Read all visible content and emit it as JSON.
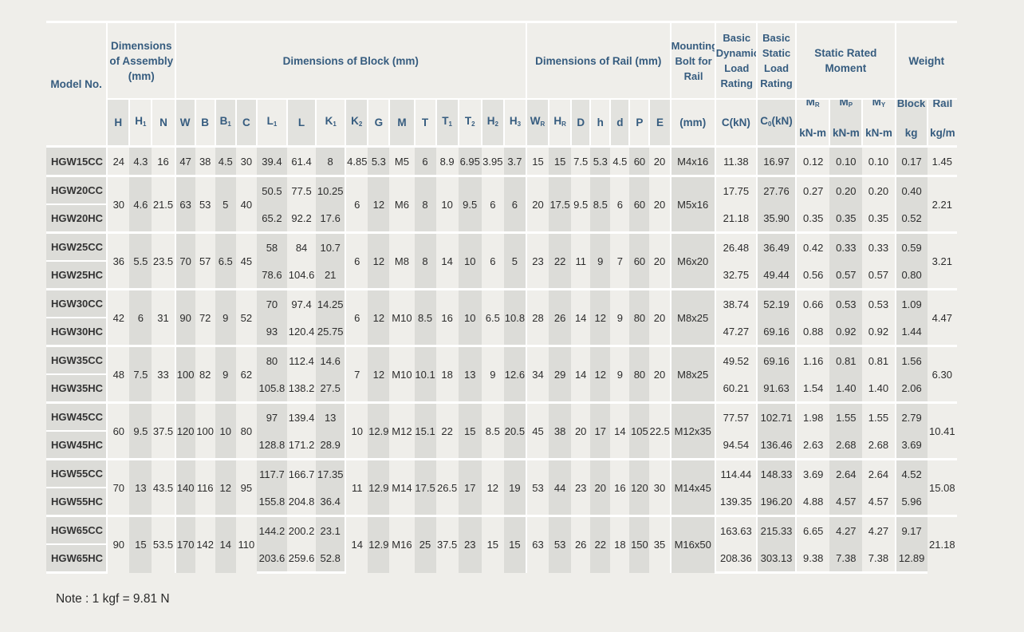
{
  "headers": {
    "model_no": "Model No.",
    "assembly_group": "Dimensions of Assembly (mm)",
    "block_group": "Dimensions of Block (mm)",
    "rail_group": "Dimensions of Rail (mm)",
    "mounting_bolt": "Mounting Bolt for Rail",
    "basic_dynamic": "Basic Dynamic Load Rating",
    "basic_static": "Basic Static Load Rating",
    "static_moment": "Static Rated Moment",
    "weight": "Weight",
    "block": "Block",
    "rail": "Rail",
    "mounting_unit": "(mm)",
    "dynamic_unit": "C(kN)",
    "static_unit_base": "C",
    "static_unit_sub": "0",
    "static_unit_tail": "(kN)",
    "moment_unit": "kN-m",
    "block_unit": "kg",
    "rail_unit": "kg/m",
    "moment_cols": [
      {
        "base": "M",
        "sub": "R"
      },
      {
        "base": "M",
        "sub": "P"
      },
      {
        "base": "M",
        "sub": "Y"
      }
    ],
    "dims": [
      {
        "base": "H",
        "sub": ""
      },
      {
        "base": "H",
        "sub": "1"
      },
      {
        "base": "N",
        "sub": ""
      },
      {
        "base": "W",
        "sub": ""
      },
      {
        "base": "B",
        "sub": ""
      },
      {
        "base": "B",
        "sub": "1"
      },
      {
        "base": "C",
        "sub": ""
      },
      {
        "base": "L",
        "sub": "1"
      },
      {
        "base": "L",
        "sub": ""
      },
      {
        "base": "K",
        "sub": "1"
      },
      {
        "base": "K",
        "sub": "2"
      },
      {
        "base": "G",
        "sub": ""
      },
      {
        "base": "M",
        "sub": ""
      },
      {
        "base": "T",
        "sub": ""
      },
      {
        "base": "T",
        "sub": "1"
      },
      {
        "base": "T",
        "sub": "2"
      },
      {
        "base": "H",
        "sub": "2"
      },
      {
        "base": "H",
        "sub": "3"
      },
      {
        "base": "W",
        "sub": "R"
      },
      {
        "base": "H",
        "sub": "R"
      },
      {
        "base": "D",
        "sub": ""
      },
      {
        "base": "h",
        "sub": ""
      },
      {
        "base": "d",
        "sub": ""
      },
      {
        "base": "P",
        "sub": ""
      },
      {
        "base": "E",
        "sub": ""
      }
    ]
  },
  "groups": [
    {
      "shared": {
        "H": "24",
        "H1": "4.3",
        "N": "16",
        "W": "47",
        "B": "38",
        "B1": "4.5",
        "C": "30",
        "K2": "4.85",
        "G": "5.3",
        "M": "M5",
        "T": "6",
        "T1": "8.9",
        "T2": "6.95",
        "H2": "3.95",
        "H3": "3.7",
        "WR": "15",
        "HR": "15",
        "D": "7.5",
        "h": "5.3",
        "d": "4.5",
        "P": "60",
        "E": "20",
        "bolt": "M4x16",
        "rail": "1.45"
      },
      "models": [
        {
          "name": "HGW15CC",
          "L1": "39.4",
          "L": "61.4",
          "K1": "8",
          "C": "11.38",
          "C0": "16.97",
          "MR": "0.12",
          "MP": "0.10",
          "MY": "0.10",
          "block": "0.17"
        }
      ]
    },
    {
      "shared": {
        "H": "30",
        "H1": "4.6",
        "N": "21.5",
        "W": "63",
        "B": "53",
        "B1": "5",
        "C": "40",
        "K2": "6",
        "G": "12",
        "M": "M6",
        "T": "8",
        "T1": "10",
        "T2": "9.5",
        "H2": "6",
        "H3": "6",
        "WR": "20",
        "HR": "17.5",
        "D": "9.5",
        "h": "8.5",
        "d": "6",
        "P": "60",
        "E": "20",
        "bolt": "M5x16",
        "rail": "2.21"
      },
      "models": [
        {
          "name": "HGW20CC",
          "L1": "50.5",
          "L": "77.5",
          "K1": "10.25",
          "C": "17.75",
          "C0": "27.76",
          "MR": "0.27",
          "MP": "0.20",
          "MY": "0.20",
          "block": "0.40"
        },
        {
          "name": "HGW20HC",
          "L1": "65.2",
          "L": "92.2",
          "K1": "17.6",
          "C": "21.18",
          "C0": "35.90",
          "MR": "0.35",
          "MP": "0.35",
          "MY": "0.35",
          "block": "0.52"
        }
      ]
    },
    {
      "shared": {
        "H": "36",
        "H1": "5.5",
        "N": "23.5",
        "W": "70",
        "B": "57",
        "B1": "6.5",
        "C": "45",
        "K2": "6",
        "G": "12",
        "M": "M8",
        "T": "8",
        "T1": "14",
        "T2": "10",
        "H2": "6",
        "H3": "5",
        "WR": "23",
        "HR": "22",
        "D": "11",
        "h": "9",
        "d": "7",
        "P": "60",
        "E": "20",
        "bolt": "M6x20",
        "rail": "3.21"
      },
      "models": [
        {
          "name": "HGW25CC",
          "L1": "58",
          "L": "84",
          "K1": "10.7",
          "C": "26.48",
          "C0": "36.49",
          "MR": "0.42",
          "MP": "0.33",
          "MY": "0.33",
          "block": "0.59"
        },
        {
          "name": "HGW25HC",
          "L1": "78.6",
          "L": "104.6",
          "K1": "21",
          "C": "32.75",
          "C0": "49.44",
          "MR": "0.56",
          "MP": "0.57",
          "MY": "0.57",
          "block": "0.80"
        }
      ]
    },
    {
      "shared": {
        "H": "42",
        "H1": "6",
        "N": "31",
        "W": "90",
        "B": "72",
        "B1": "9",
        "C": "52",
        "K2": "6",
        "G": "12",
        "M": "M10",
        "T": "8.5",
        "T1": "16",
        "T2": "10",
        "H2": "6.5",
        "H3": "10.8",
        "WR": "28",
        "HR": "26",
        "D": "14",
        "h": "12",
        "d": "9",
        "P": "80",
        "E": "20",
        "bolt": "M8x25",
        "rail": "4.47"
      },
      "models": [
        {
          "name": "HGW30CC",
          "L1": "70",
          "L": "97.4",
          "K1": "14.25",
          "C": "38.74",
          "C0": "52.19",
          "MR": "0.66",
          "MP": "0.53",
          "MY": "0.53",
          "block": "1.09"
        },
        {
          "name": "HGW30HC",
          "L1": "93",
          "L": "120.4",
          "K1": "25.75",
          "C": "47.27",
          "C0": "69.16",
          "MR": "0.88",
          "MP": "0.92",
          "MY": "0.92",
          "block": "1.44"
        }
      ]
    },
    {
      "shared": {
        "H": "48",
        "H1": "7.5",
        "N": "33",
        "W": "100",
        "B": "82",
        "B1": "9",
        "C": "62",
        "K2": "7",
        "G": "12",
        "M": "M10",
        "T": "10.1",
        "T1": "18",
        "T2": "13",
        "H2": "9",
        "H3": "12.6",
        "WR": "34",
        "HR": "29",
        "D": "14",
        "h": "12",
        "d": "9",
        "P": "80",
        "E": "20",
        "bolt": "M8x25",
        "rail": "6.30"
      },
      "models": [
        {
          "name": "HGW35CC",
          "L1": "80",
          "L": "112.4",
          "K1": "14.6",
          "C": "49.52",
          "C0": "69.16",
          "MR": "1.16",
          "MP": "0.81",
          "MY": "0.81",
          "block": "1.56"
        },
        {
          "name": "HGW35HC",
          "L1": "105.8",
          "L": "138.2",
          "K1": "27.5",
          "C": "60.21",
          "C0": "91.63",
          "MR": "1.54",
          "MP": "1.40",
          "MY": "1.40",
          "block": "2.06"
        }
      ]
    },
    {
      "shared": {
        "H": "60",
        "H1": "9.5",
        "N": "37.5",
        "W": "120",
        "B": "100",
        "B1": "10",
        "C": "80",
        "K2": "10",
        "G": "12.9",
        "M": "M12",
        "T": "15.1",
        "T1": "22",
        "T2": "15",
        "H2": "8.5",
        "H3": "20.5",
        "WR": "45",
        "HR": "38",
        "D": "20",
        "h": "17",
        "d": "14",
        "P": "105",
        "E": "22.5",
        "bolt": "M12x35",
        "rail": "10.41"
      },
      "models": [
        {
          "name": "HGW45CC",
          "L1": "97",
          "L": "139.4",
          "K1": "13",
          "C": "77.57",
          "C0": "102.71",
          "MR": "1.98",
          "MP": "1.55",
          "MY": "1.55",
          "block": "2.79"
        },
        {
          "name": "HGW45HC",
          "L1": "128.8",
          "L": "171.2",
          "K1": "28.9",
          "C": "94.54",
          "C0": "136.46",
          "MR": "2.63",
          "MP": "2.68",
          "MY": "2.68",
          "block": "3.69"
        }
      ]
    },
    {
      "shared": {
        "H": "70",
        "H1": "13",
        "N": "43.5",
        "W": "140",
        "B": "116",
        "B1": "12",
        "C": "95",
        "K2": "11",
        "G": "12.9",
        "M": "M14",
        "T": "17.5",
        "T1": "26.5",
        "T2": "17",
        "H2": "12",
        "H3": "19",
        "WR": "53",
        "HR": "44",
        "D": "23",
        "h": "20",
        "d": "16",
        "P": "120",
        "E": "30",
        "bolt": "M14x45",
        "rail": "15.08"
      },
      "models": [
        {
          "name": "HGW55CC",
          "L1": "117.7",
          "L": "166.7",
          "K1": "17.35",
          "C": "114.44",
          "C0": "148.33",
          "MR": "3.69",
          "MP": "2.64",
          "MY": "2.64",
          "block": "4.52"
        },
        {
          "name": "HGW55HC",
          "L1": "155.8",
          "L": "204.8",
          "K1": "36.4",
          "C": "139.35",
          "C0": "196.20",
          "MR": "4.88",
          "MP": "4.57",
          "MY": "4.57",
          "block": "5.96"
        }
      ]
    },
    {
      "shared": {
        "H": "90",
        "H1": "15",
        "N": "53.5",
        "W": "170",
        "B": "142",
        "B1": "14",
        "C": "110",
        "K2": "14",
        "G": "12.9",
        "M": "M16",
        "T": "25",
        "T1": "37.5",
        "T2": "23",
        "H2": "15",
        "H3": "15",
        "WR": "63",
        "HR": "53",
        "D": "26",
        "h": "22",
        "d": "18",
        "P": "150",
        "E": "35",
        "bolt": "M16x50",
        "rail": "21.18"
      },
      "models": [
        {
          "name": "HGW65CC",
          "L1": "144.2",
          "L": "200.2",
          "K1": "23.1",
          "C": "163.63",
          "C0": "215.33",
          "MR": "6.65",
          "MP": "4.27",
          "MY": "4.27",
          "block": "9.17"
        },
        {
          "name": "HGW65HC",
          "L1": "203.6",
          "L": "259.6",
          "K1": "52.8",
          "C": "208.36",
          "C0": "303.13",
          "MR": "9.38",
          "MP": "7.38",
          "MY": "7.38",
          "block": "12.89"
        }
      ]
    }
  ],
  "note": "Note : 1 kgf = 9.81 N"
}
